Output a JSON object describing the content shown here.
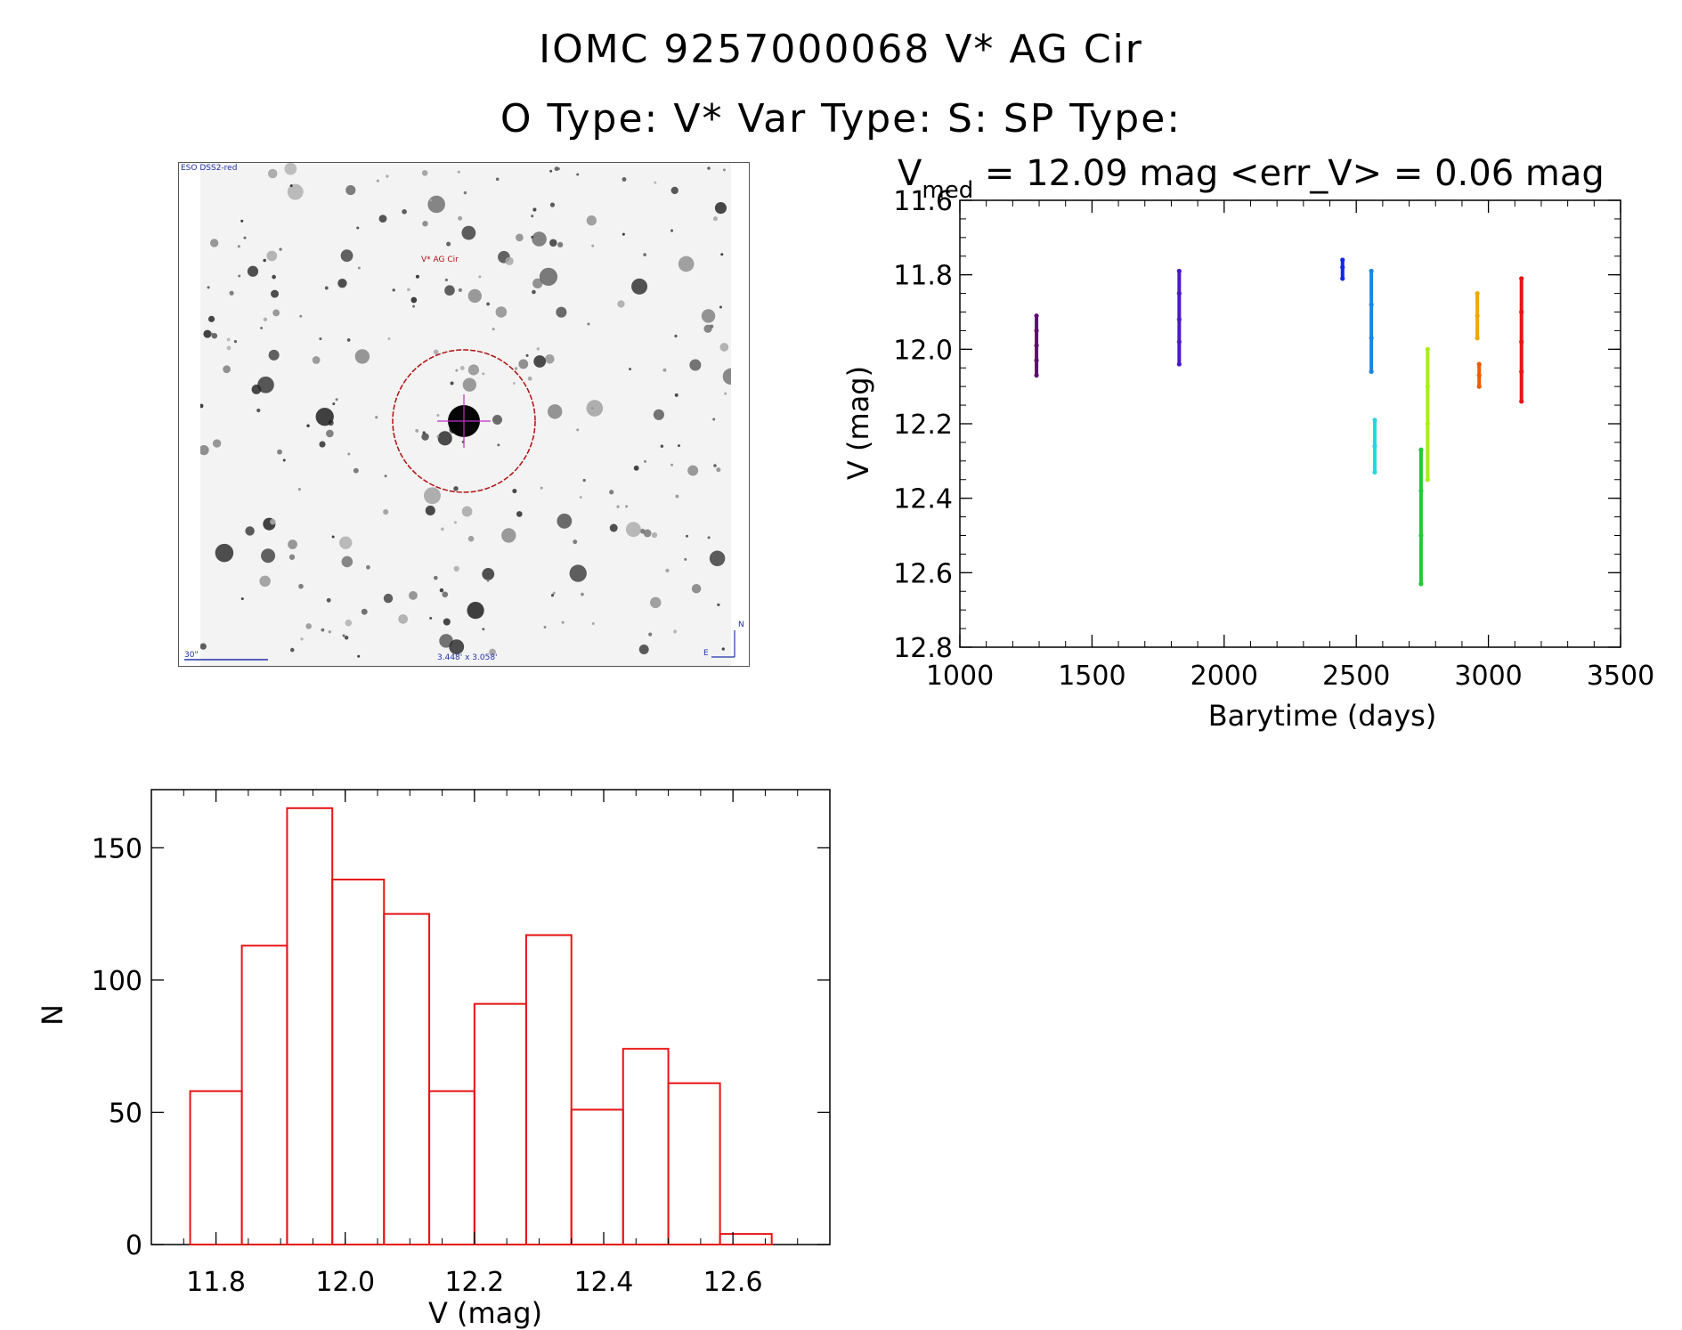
{
  "header": {
    "title": "IOMC 9257000068    V* AG Cir",
    "subtitle": "O Type: V*  Var Type: S:  SP Type:"
  },
  "thumbnail": {
    "survey_label": "ESO DSS2-red",
    "target_label": "V* AG Cir",
    "scale_label": "30\"",
    "fov_label": "3.448' x 3.058'",
    "north_label": "N",
    "east_label": "E"
  },
  "lightcurve": {
    "stat_prefix": "V",
    "stat_sub": "med",
    "stat_text": " = 12.09 mag <err_V> = 0.06 mag",
    "chart_data": {
      "type": "scatter",
      "xlabel": "Barytime (days)",
      "ylabel": "V (mag)",
      "xlim": [
        1000,
        3500
      ],
      "ylim": [
        11.6,
        12.8
      ],
      "y_inverted": true,
      "x_ticks": [
        1000,
        1500,
        2000,
        2500,
        3000,
        3500
      ],
      "y_ticks": [
        "11.6",
        "11.8",
        "12.0",
        "12.2",
        "12.4",
        "12.6",
        "12.8"
      ],
      "series": [
        {
          "color": "#5b0d78",
          "x": [
            1290,
            1290,
            1290,
            1290,
            1290
          ],
          "y": [
            11.91,
            11.95,
            11.99,
            12.03,
            12.07
          ]
        },
        {
          "color": "#4a18c8",
          "x": [
            1830,
            1830,
            1830,
            1830,
            1830
          ],
          "y": [
            11.79,
            11.85,
            11.92,
            11.98,
            12.04
          ]
        },
        {
          "color": "#1028e0",
          "x": [
            2448,
            2448,
            2448
          ],
          "y": [
            11.76,
            11.78,
            11.81
          ]
        },
        {
          "color": "#1a86e0",
          "x": [
            2557,
            2557,
            2557,
            2557
          ],
          "y": [
            11.79,
            11.88,
            11.97,
            12.06
          ]
        },
        {
          "color": "#20d8e0",
          "x": [
            2570,
            2570,
            2570
          ],
          "y": [
            12.19,
            12.26,
            12.33
          ]
        },
        {
          "color": "#22c83a",
          "x": [
            2745,
            2745,
            2745,
            2745
          ],
          "y": [
            12.27,
            12.38,
            12.5,
            12.63
          ]
        },
        {
          "color": "#a8ee1c",
          "x": [
            2770,
            2770,
            2770,
            2770
          ],
          "y": [
            12.0,
            12.1,
            12.2,
            12.35
          ]
        },
        {
          "color": "#f0a800",
          "x": [
            2958,
            2958,
            2958
          ],
          "y": [
            11.85,
            11.91,
            11.97
          ]
        },
        {
          "color": "#f05a00",
          "x": [
            2965,
            2965,
            2965
          ],
          "y": [
            12.04,
            12.07,
            12.1
          ]
        },
        {
          "color": "#e81414",
          "x": [
            3125,
            3125,
            3125,
            3125,
            3125
          ],
          "y": [
            11.81,
            11.9,
            11.98,
            12.06,
            12.14
          ]
        }
      ]
    }
  },
  "histogram": {
    "chart_data": {
      "type": "bar",
      "xlabel": "V (mag)",
      "ylabel": "N",
      "xlim": [
        11.7,
        12.75
      ],
      "ylim": [
        0,
        172
      ],
      "x_ticks": [
        "11.8",
        "12.0",
        "12.2",
        "12.4",
        "12.6"
      ],
      "y_ticks": [
        "0",
        "50",
        "100",
        "150"
      ],
      "bin_edges": [
        11.76,
        11.84,
        11.91,
        11.98,
        12.06,
        12.13,
        12.2,
        12.28,
        12.35,
        12.43,
        12.5,
        12.58,
        12.66
      ],
      "values": [
        58,
        113,
        165,
        138,
        125,
        58,
        91,
        117,
        51,
        74,
        61,
        4
      ],
      "color": "#e81414"
    }
  }
}
